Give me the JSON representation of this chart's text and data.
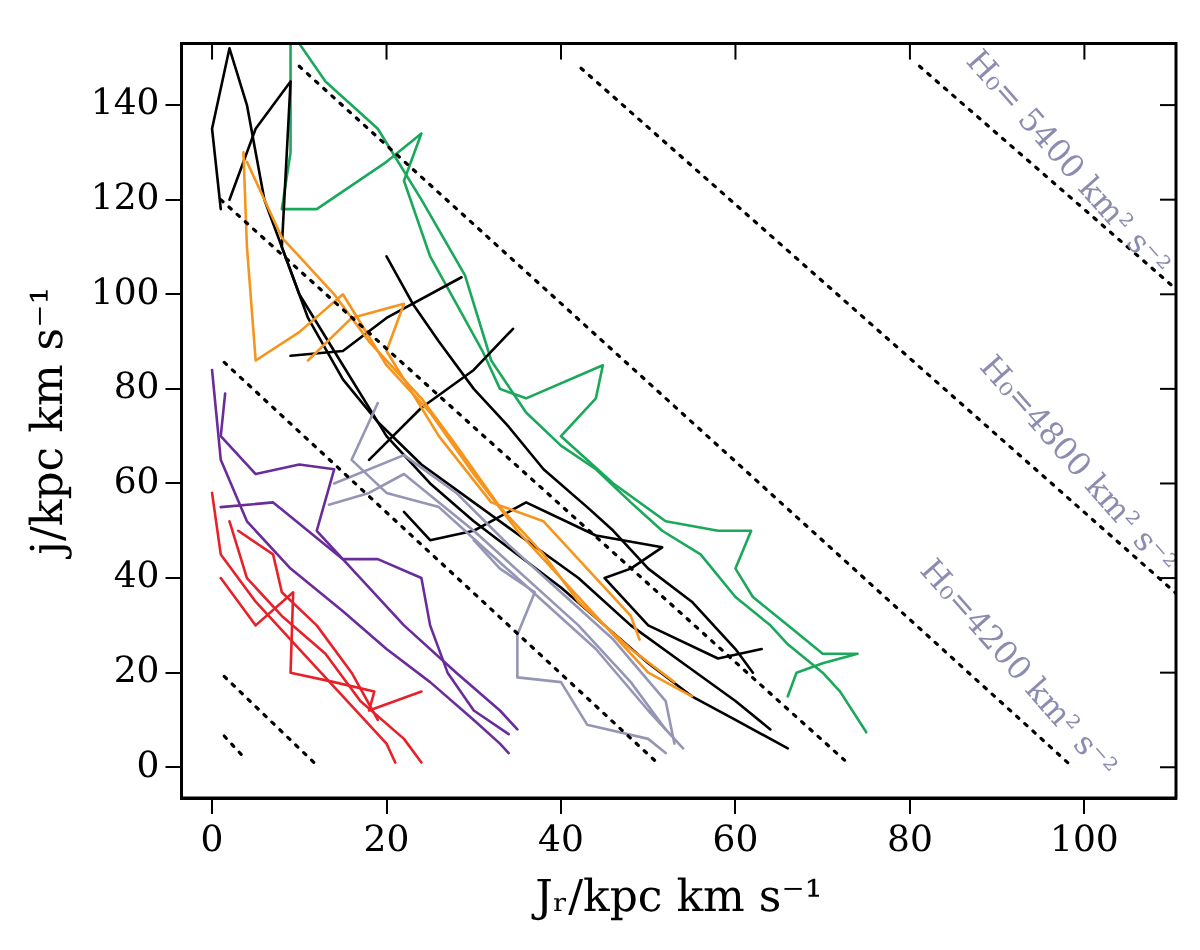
{
  "chart_data": {
    "type": "line",
    "xlabel": "Jᵣ/kpc km s⁻¹",
    "ylabel": "j/kpc km s⁻¹",
    "xlim": [
      -3.5,
      110.5
    ],
    "ylim": [
      -6.5,
      153
    ],
    "xticks": [
      0,
      20,
      40,
      60,
      80,
      100
    ],
    "yticks": [
      0,
      20,
      40,
      60,
      80,
      100,
      120,
      140
    ],
    "grid": false,
    "legend": false,
    "annotations": [
      "H₀= 5400 km² s⁻²",
      "H₀=4800 km² s⁻²",
      "H₀=4200 km² s⁻²"
    ],
    "series": [
      {
        "color": "#000000",
        "line_style": "dotted",
        "x": [
          81.1,
          110.5
        ],
        "values": [
          148.2,
          101.1
        ]
      },
      {
        "color": "#000000",
        "line_style": "dotted",
        "x": [
          42.3,
          110.5
        ],
        "values": [
          147.8,
          36.8
        ]
      },
      {
        "color": "#000000",
        "line_style": "dotted",
        "x": [
          10,
          98.2
        ],
        "values": [
          148.2,
          0.8
        ]
      },
      {
        "color": "#000000",
        "line_style": "dotted",
        "x": [
          1,
          72.5
        ],
        "values": [
          120,
          1.5
        ]
      },
      {
        "color": "#000000",
        "line_style": "dotted",
        "x": [
          1.4,
          51
        ],
        "values": [
          85.6,
          1
        ]
      },
      {
        "color": "#000000",
        "line_style": "dotted",
        "x": [
          1.4,
          11.8
        ],
        "values": [
          19.2,
          0.8
        ]
      },
      {
        "color": "#000000",
        "line_style": "dotted",
        "x": [
          1.4,
          3.9
        ],
        "values": [
          6.6,
          1.6
        ]
      },
      {
        "color": "#e8202a",
        "line_style": "solid",
        "x": [
          0,
          1,
          5,
          10,
          15,
          20,
          21
        ],
        "values": [
          58,
          45,
          35,
          25,
          15,
          5,
          1
        ]
      },
      {
        "color": "#e8202a",
        "line_style": "solid",
        "x": [
          2,
          4,
          8,
          13,
          17,
          22,
          24
        ],
        "values": [
          52,
          40,
          32,
          24,
          14,
          6,
          1
        ]
      },
      {
        "color": "#e8202a",
        "line_style": "solid",
        "x": [
          1,
          5,
          9.3,
          9,
          14,
          18.6,
          18,
          24
        ],
        "values": [
          40,
          30,
          37,
          20,
          18,
          16,
          12,
          16
        ]
      },
      {
        "color": "#e8202a",
        "line_style": "solid",
        "x": [
          3,
          7,
          8,
          12,
          16,
          19
        ],
        "values": [
          50,
          45,
          37,
          30,
          20,
          10
        ]
      },
      {
        "color": "#6a2c9a",
        "line_style": "solid",
        "x": [
          0,
          1,
          4,
          9,
          15,
          20,
          25,
          30,
          33,
          34
        ],
        "values": [
          84,
          65,
          52,
          42,
          33,
          25,
          18,
          10,
          5,
          3
        ]
      },
      {
        "color": "#6a2c9a",
        "line_style": "solid",
        "x": [
          1.5,
          1,
          5,
          10,
          14,
          12,
          17,
          22,
          28,
          33,
          35
        ],
        "values": [
          79,
          70,
          62,
          64,
          63,
          50,
          40,
          30,
          20,
          12,
          8
        ]
      },
      {
        "color": "#6a2c9a",
        "line_style": "solid",
        "x": [
          1,
          7,
          15,
          19,
          24,
          25,
          27,
          30,
          34
        ],
        "values": [
          55,
          56,
          44,
          44,
          40,
          30,
          20,
          12,
          7
        ]
      },
      {
        "color": "#9595b5",
        "line_style": "solid",
        "x": [
          19,
          16,
          20,
          26,
          32,
          38,
          44,
          50,
          54
        ],
        "values": [
          77,
          65,
          58,
          55,
          45,
          35,
          25,
          12,
          4
        ]
      },
      {
        "color": "#9595b5",
        "line_style": "solid",
        "x": [
          14,
          22,
          28,
          34,
          40,
          46,
          52,
          53
        ],
        "values": [
          60,
          66,
          58,
          47,
          37,
          27,
          14,
          5
        ]
      },
      {
        "color": "#9595b5",
        "line_style": "solid",
        "x": [
          30,
          33,
          37,
          35,
          35,
          40,
          43,
          50,
          52
        ],
        "values": [
          48,
          42,
          37,
          28,
          19,
          18,
          9,
          6,
          3
        ]
      },
      {
        "color": "#9595b5",
        "line_style": "solid",
        "x": [
          13.4,
          18,
          22,
          30,
          42,
          48,
          52
        ],
        "values": [
          55.5,
          58,
          62,
          50,
          30,
          18,
          8
        ]
      },
      {
        "color": "#f7941d",
        "line_style": "solid",
        "x": [
          3.6,
          4,
          5,
          10,
          15,
          20,
          25,
          30,
          35,
          40,
          45,
          50,
          55
        ],
        "values": [
          130,
          110,
          86,
          92,
          100,
          85,
          75,
          62,
          50,
          40,
          30,
          20,
          15
        ]
      },
      {
        "color": "#f7941d",
        "line_style": "solid",
        "x": [
          4,
          8,
          14,
          18,
          24,
          28,
          33,
          38,
          42,
          48,
          53
        ],
        "values": [
          128,
          112,
          100,
          90,
          78,
          68,
          55,
          45,
          35,
          25,
          18
        ]
      },
      {
        "color": "#f7941d",
        "line_style": "solid",
        "x": [
          11,
          16,
          22,
          20,
          26,
          32,
          38,
          44,
          48,
          49
        ],
        "values": [
          86,
          95,
          98,
          88,
          70,
          56,
          52,
          40,
          32,
          27
        ]
      },
      {
        "color": "#000000",
        "line_style": "solid",
        "x": [
          1,
          0,
          2,
          4,
          6,
          10,
          15,
          20,
          25,
          30,
          35,
          40,
          45,
          50,
          55,
          60,
          66
        ],
        "values": [
          118,
          135,
          152,
          140,
          120,
          100,
          85,
          70,
          60,
          52,
          45,
          38,
          30,
          22,
          15,
          10,
          4
        ]
      },
      {
        "color": "#000000",
        "line_style": "solid",
        "x": [
          2,
          5,
          9,
          8,
          11,
          15,
          19,
          24,
          30,
          36,
          42,
          48,
          54,
          60,
          64
        ],
        "values": [
          120,
          135,
          145,
          110,
          95,
          82,
          73,
          64,
          56,
          48,
          40,
          30,
          22,
          14,
          8
        ]
      },
      {
        "color": "#000000",
        "line_style": "solid",
        "x": [
          20,
          23,
          26,
          30,
          34,
          38,
          43,
          46,
          50,
          55,
          60,
          62
        ],
        "values": [
          108,
          98,
          90,
          80,
          72,
          63,
          55,
          50,
          42,
          35,
          25,
          20
        ]
      },
      {
        "color": "#000000",
        "line_style": "solid",
        "x": [
          9,
          15,
          20,
          28.6
        ],
        "values": [
          87,
          88,
          95,
          103.6
        ]
      },
      {
        "color": "#000000",
        "line_style": "solid",
        "x": [
          18,
          24,
          30,
          34.5
        ],
        "values": [
          65,
          76,
          84,
          92.7
        ]
      },
      {
        "color": "#000000",
        "line_style": "solid",
        "x": [
          22,
          25,
          30,
          36,
          44,
          51.6,
          48,
          45,
          50,
          58,
          63
        ],
        "values": [
          54,
          48,
          50,
          56,
          49,
          46.5,
          42,
          40,
          30,
          23,
          25
        ]
      },
      {
        "color": "#1aa85a",
        "line_style": "solid",
        "x": [
          10,
          13,
          19,
          24,
          29,
          32,
          36,
          40,
          44,
          48,
          51.6,
          56,
          60,
          64,
          66,
          70,
          72,
          75
        ],
        "values": [
          153,
          145,
          135,
          120,
          104,
          86,
          75,
          68,
          63,
          56,
          50,
          45,
          36,
          30,
          26,
          20,
          16,
          7.4
        ]
      },
      {
        "color": "#1aa85a",
        "line_style": "solid",
        "x": [
          9,
          9,
          8,
          12,
          20,
          24,
          22,
          25,
          28,
          31,
          33,
          36,
          44.8,
          44,
          40,
          46,
          52,
          58,
          61.8,
          60,
          62,
          66,
          70,
          74,
          70,
          67,
          66
        ],
        "values": [
          153,
          130,
          118,
          118,
          128,
          134,
          124,
          108,
          98,
          88,
          80,
          78,
          85,
          78,
          70,
          60,
          52,
          50,
          50,
          42,
          36,
          30,
          24,
          24,
          22,
          20,
          15
        ]
      }
    ]
  }
}
